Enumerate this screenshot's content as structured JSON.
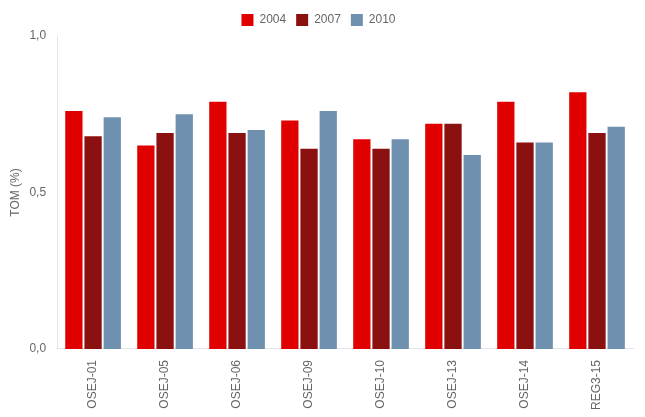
{
  "chart_data": {
    "type": "bar",
    "categories": [
      "OSEJ-01",
      "OSEJ-05",
      "OSEJ-06",
      "OSEJ-09",
      "OSEJ-10",
      "OSEJ-13",
      "OSEJ-14",
      "REG3-15"
    ],
    "series": [
      {
        "name": "2004",
        "color": "#e00000",
        "values": [
          0.76,
          0.65,
          0.79,
          0.73,
          0.67,
          0.72,
          0.79,
          0.82
        ]
      },
      {
        "name": "2007",
        "color": "#8b1010",
        "values": [
          0.68,
          0.69,
          0.69,
          0.64,
          0.64,
          0.72,
          0.66,
          0.69
        ]
      },
      {
        "name": "2010",
        "color": "#7090b0",
        "values": [
          0.74,
          0.75,
          0.7,
          0.76,
          0.67,
          0.62,
          0.66,
          0.71
        ]
      }
    ],
    "y_label": "TOM (%)",
    "ylim": [
      0.0,
      1.0
    ],
    "yticks": [
      {
        "value": 0.0,
        "label": "0,0"
      },
      {
        "value": 0.5,
        "label": "0,5"
      },
      {
        "value": 1.0,
        "label": "1,0"
      }
    ],
    "grid": false,
    "legend": "top"
  }
}
